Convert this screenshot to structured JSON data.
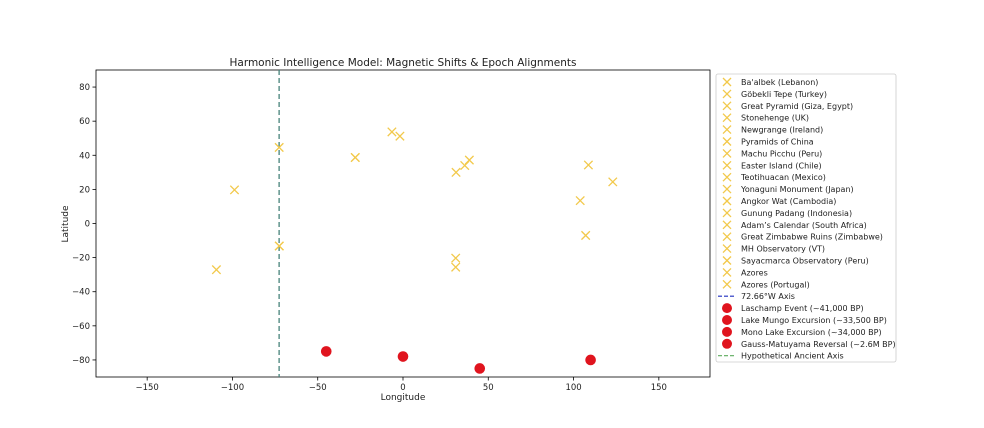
{
  "chart_data": {
    "type": "scatter",
    "title": "Harmonic Intelligence Model: Magnetic Shifts & Epoch Alignments",
    "xlabel": "Longitude",
    "ylabel": "Latitude",
    "xlim": [
      -180,
      180
    ],
    "ylim": [
      -90,
      90
    ],
    "xticks": [
      -150,
      -100,
      -50,
      0,
      50,
      100,
      150
    ],
    "yticks": [
      -80,
      -60,
      -40,
      -20,
      0,
      20,
      40,
      60,
      80
    ],
    "grid": false,
    "legend_position": "outside-right",
    "colors": {
      "site": "#f2c94c",
      "event": "#e0141e",
      "axis_line": "#1f2fbf",
      "ancient_axis": "#5cab5c",
      "annotation": "#1f2fbf"
    },
    "sites": [
      {
        "name": "Ba'albek (Lebanon)",
        "x": 36.2,
        "y": 34.0
      },
      {
        "name": "Göbekli Tepe (Turkey)",
        "x": 38.9,
        "y": 37.2
      },
      {
        "name": "Great Pyramid (Giza, Egypt)",
        "x": 31.1,
        "y": 30.0
      },
      {
        "name": "Stonehenge (UK)",
        "x": -1.8,
        "y": 51.2
      },
      {
        "name": "Newgrange (Ireland)",
        "x": -6.5,
        "y": 53.7
      },
      {
        "name": "Pyramids of China",
        "x": 108.7,
        "y": 34.3
      },
      {
        "name": "Machu Picchu (Peru)",
        "x": -72.5,
        "y": -13.2
      },
      {
        "name": "Easter Island (Chile)",
        "x": -109.4,
        "y": -27.1
      },
      {
        "name": "Teotihuacan (Mexico)",
        "x": -98.8,
        "y": 19.7
      },
      {
        "name": "Yonaguni Monument (Japan)",
        "x": 123.0,
        "y": 24.4
      },
      {
        "name": "Angkor Wat (Cambodia)",
        "x": 103.9,
        "y": 13.4
      },
      {
        "name": "Gunung Padang (Indonesia)",
        "x": 107.1,
        "y": -7.0
      },
      {
        "name": "Adam’s Calendar (South Africa)",
        "x": 30.9,
        "y": -25.6
      },
      {
        "name": "Great Zimbabwe Ruins (Zimbabwe)",
        "x": 30.9,
        "y": -20.3
      },
      {
        "name": "MH Observatory (VT)",
        "x": -72.6,
        "y": 44.6
      },
      {
        "name": "Sayacmarca Observatory (Peru)",
        "x": -72.6,
        "y": -13.2
      },
      {
        "name": "Azores",
        "x": -28.0,
        "y": 38.7
      },
      {
        "name": "Azores (Portugal)",
        "x": -28.0,
        "y": 38.7
      }
    ],
    "annotations": [
      {
        "text": "Azores (Portugal)",
        "x": -59,
        "y": 38.7
      },
      {
        "text": "Azores",
        "x": -41,
        "y": 38.7
      }
    ],
    "vertical_line": {
      "label": "72.66°W Axis",
      "x": -72.66
    },
    "events": [
      {
        "name": "Laschamp Event (~41,000 BP)",
        "x": -45,
        "y": -75
      },
      {
        "name": "Lake Mungo Excursion (~33,500 BP)",
        "x": 0,
        "y": -78
      },
      {
        "name": "Mono Lake Excursion (~34,000 BP)",
        "x": 45,
        "y": -85
      },
      {
        "name": "Gauss-Matuyama Reversal (~2.6M BP)",
        "x": 110,
        "y": -80
      }
    ],
    "ancient_axis": {
      "label": "Hypothetical Ancient Axis",
      "x": -72.66
    }
  }
}
